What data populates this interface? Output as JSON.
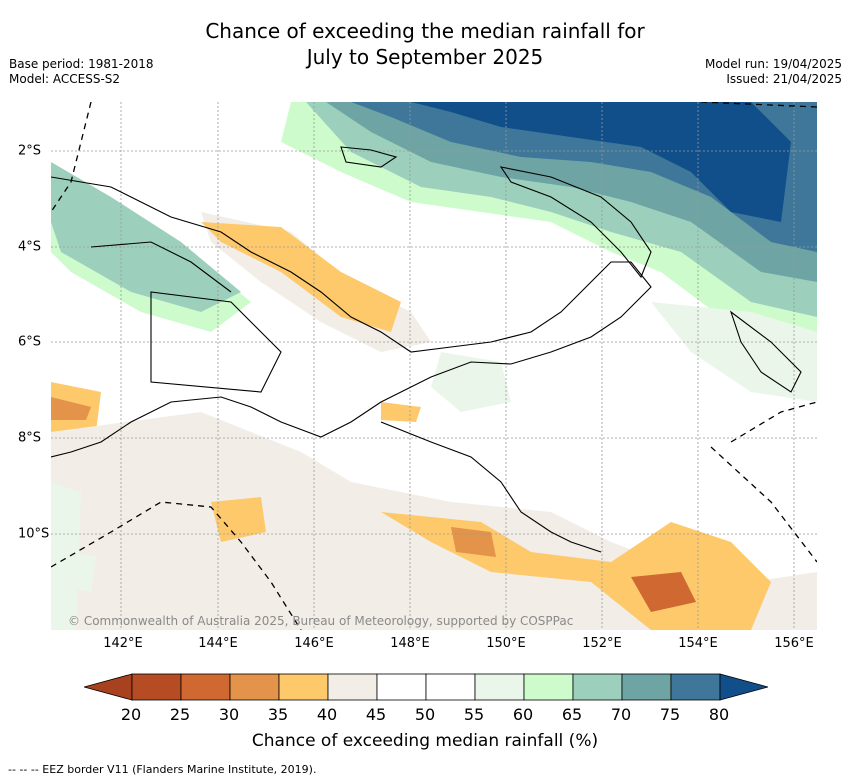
{
  "title": {
    "line1": "Chance of exceeding the median rainfall for",
    "line2": "July to September 2025"
  },
  "meta": {
    "base_period": "Base period: 1981-2018",
    "model": "Model: ACCESS-S2",
    "model_run": "Model run: 19/04/2025",
    "issued": "Issued: 21/04/2025"
  },
  "map": {
    "x_ticks": [
      "142°E",
      "144°E",
      "146°E",
      "148°E",
      "150°E",
      "152°E",
      "154°E",
      "156°E"
    ],
    "y_ticks": [
      "2°S",
      "4°S",
      "6°S",
      "8°S",
      "10°S"
    ],
    "copyright": "© Commonwealth of Australia 2025, Bureau of Meteorology, supported by COSPPac",
    "gridlines": true
  },
  "colorbar": {
    "ticks": [
      "20",
      "25",
      "30",
      "35",
      "40",
      "45",
      "50",
      "55",
      "60",
      "65",
      "70",
      "75",
      "80"
    ],
    "colors": [
      "#a8411e",
      "#b54c24",
      "#cf6831",
      "#e3934a",
      "#fdc96b",
      "#f2ede6",
      "#ffffff",
      "#ffffff",
      "#ebf6ea",
      "#cdfbcb",
      "#9dd0bc",
      "#6ea5a4",
      "#3e7799",
      "#114f8a"
    ],
    "label": "Chance of exceeding median rainfall (%)"
  },
  "legend": {
    "eez": "-- -- -- EEZ border V11 (Flanders Marine Institute, 2019)."
  }
}
